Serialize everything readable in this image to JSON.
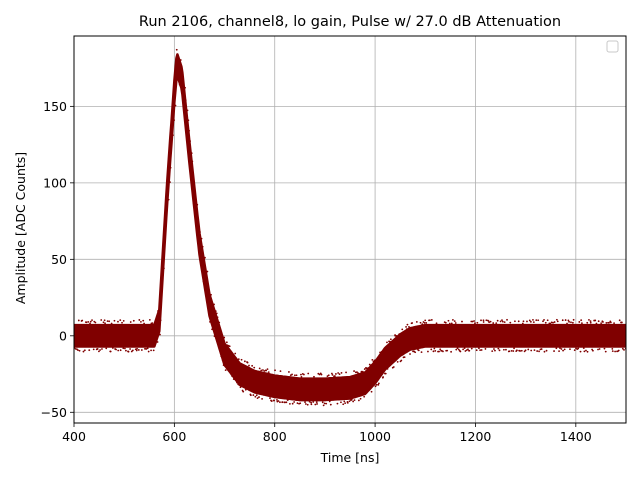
{
  "chart_data": {
    "type": "scatter",
    "title": "Run 2106, channel8, lo gain, Pulse w/ 27.0 dB Attenuation",
    "xlabel": "Time [ns]",
    "ylabel": "Amplitude [ADC Counts]",
    "xlim": [
      400,
      1500
    ],
    "ylim": [
      -57,
      196
    ],
    "xticks": [
      400,
      600,
      800,
      1000,
      1200,
      1400
    ],
    "yticks": [
      -50,
      0,
      50,
      100,
      150
    ],
    "xtick_labels": [
      "400",
      "600",
      "800",
      "1000",
      "1200",
      "1400"
    ],
    "ytick_labels": [
      "−50",
      "0",
      "50",
      "100",
      "150"
    ],
    "grid": true,
    "legend": "top-right (empty)",
    "series_color": "#800000",
    "noise_band_halfwidth": 7,
    "envelope": {
      "x": [
        400,
        560,
        570,
        585,
        600,
        605,
        615,
        630,
        650,
        670,
        700,
        730,
        760,
        800,
        850,
        900,
        950,
        980,
        1000,
        1020,
        1050,
        1070,
        1100,
        1200,
        1300,
        1400,
        1500
      ],
      "y": [
        0,
        0,
        10,
        90,
        160,
        178,
        168,
        120,
        60,
        20,
        -12,
        -25,
        -30,
        -33,
        -35,
        -35,
        -34,
        -31,
        -24,
        -15,
        -6,
        -2,
        0,
        0,
        0,
        0,
        0
      ]
    }
  }
}
